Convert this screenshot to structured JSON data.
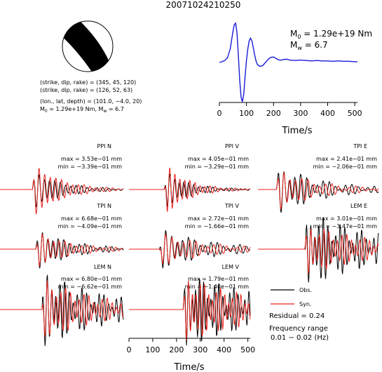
{
  "figure": {
    "event_id": "20071024210250",
    "source_params": [
      "(strike, dip, rake) = (345, 45, 120)",
      "(strike, dip, rake) = (126, 52, 63)",
      "(lon., lat, depth) = (101.0, −4.0, 20)"
    ],
    "moment_line": {
      "m0_prefix": "M",
      "m0_sub": "0",
      "m0_value": " = 1.29e+19 Nm, M",
      "mw_sub": "w",
      "mw_value": " = 6.7"
    },
    "stf_labels": {
      "m0_prefix": "M",
      "m0_sub": "0",
      "m0_value": " = 1.29e+19 Nm",
      "mw_prefix": "M",
      "mw_sub": "w",
      "mw_value": " = 6.7"
    },
    "legend": {
      "obs": "Obs.",
      "syn": "Syn.",
      "residual": "Residual = 0.24",
      "freq_label": "Frequency range",
      "freq_value": "0.01 − 0.02 (Hz)"
    },
    "colors": {
      "obs": "#000000",
      "syn": "#e8231e",
      "stf": "#1a1ad6",
      "axis": "#000000"
    }
  },
  "chart_data": [
    {
      "type": "line",
      "name": "source_time_function",
      "xlabel": "Time/s",
      "xlim": [
        0,
        510
      ],
      "xticks": [
        0,
        100,
        200,
        300,
        400,
        500
      ],
      "x": [
        0,
        10,
        20,
        30,
        40,
        50,
        55,
        60,
        65,
        70,
        75,
        80,
        85,
        90,
        95,
        100,
        105,
        110,
        115,
        120,
        125,
        130,
        135,
        140,
        150,
        160,
        170,
        180,
        190,
        200,
        210,
        220,
        230,
        240,
        250,
        260,
        280,
        300,
        320,
        340,
        360,
        380,
        400,
        420,
        440,
        460,
        480,
        500,
        510
      ],
      "y": [
        0.0,
        0.02,
        0.05,
        0.12,
        0.35,
        0.78,
        0.96,
        1.0,
        0.75,
        0.2,
        -0.45,
        -0.88,
        -1.0,
        -0.8,
        -0.35,
        0.05,
        0.35,
        0.55,
        0.62,
        0.55,
        0.38,
        0.2,
        0.05,
        -0.05,
        -0.1,
        -0.08,
        0.0,
        0.08,
        0.13,
        0.14,
        0.1,
        0.06,
        0.06,
        0.08,
        0.08,
        0.06,
        0.05,
        0.06,
        0.05,
        0.04,
        0.05,
        0.04,
        0.04,
        0.03,
        0.04,
        0.03,
        0.03,
        0.02,
        0.02
      ]
    },
    {
      "type": "line",
      "name": "station_panels",
      "xlabel": "Time/s",
      "xlim": [
        0,
        510
      ],
      "xticks": [
        0,
        100,
        200,
        300,
        400,
        500
      ],
      "panels": [
        {
          "station": "PPI N",
          "max": "max = 3.53e−01 mm",
          "min": "min = −3.39e−01 mm",
          "onset": 135,
          "period": 22,
          "decay": 110,
          "amp_obs": 0.62,
          "amp_syn": 0.88,
          "ring": 0.12,
          "phase": 0.4
        },
        {
          "station": "PPI V",
          "max": "max = 4.05e−01 mm",
          "min": "min = −3.29e−01 mm",
          "onset": 150,
          "period": 20,
          "decay": 90,
          "amp_obs": 0.6,
          "amp_syn": 0.85,
          "ring": 0.14,
          "phase": 1.1
        },
        {
          "station": "TPI E",
          "max": "max = 2.41e−01 mm",
          "min": "min = −2.06e−01 mm",
          "onset": 80,
          "period": 24,
          "decay": 150,
          "amp_obs": 0.72,
          "amp_syn": 0.62,
          "ring": 0.3,
          "phase": 0.2
        },
        {
          "station": "TPI N",
          "max": "max = 6.68e−01 mm",
          "min": "min = −4.09e−01 mm",
          "onset": 150,
          "period": 22,
          "decay": 130,
          "amp_obs": 0.6,
          "amp_syn": 0.55,
          "ring": 0.2,
          "phase": 0.7
        },
        {
          "station": "TPI V",
          "max": "max = 2.72e−01 mm",
          "min": "min = −1.66e−01 mm",
          "onset": 130,
          "period": 24,
          "decay": 180,
          "amp_obs": 0.55,
          "amp_syn": 0.48,
          "ring": 0.3,
          "phase": 1.4
        },
        {
          "station": "LEM E",
          "max": "max = 3.01e−01 mm",
          "min": "min = −3.47e−01 mm",
          "onset": 200,
          "period": 18,
          "decay": 260,
          "amp_obs": 0.95,
          "amp_syn": 0.7,
          "ring": 0.45,
          "phase": 0.0
        },
        {
          "station": "LEM N",
          "max": "max = 6.80e−01 mm",
          "min": "min = −6.62e−01 mm",
          "onset": 175,
          "period": 18,
          "decay": 220,
          "amp_obs": 0.98,
          "amp_syn": 0.85,
          "ring": 0.4,
          "phase": 0.9
        },
        {
          "station": "LEM V",
          "max": "max = 1.79e−01 mm",
          "min": "min = −1.40e−01 mm",
          "onset": 230,
          "period": 16,
          "decay": 300,
          "amp_obs": 0.9,
          "amp_syn": 0.85,
          "ring": 0.5,
          "phase": 0.3
        }
      ]
    }
  ]
}
